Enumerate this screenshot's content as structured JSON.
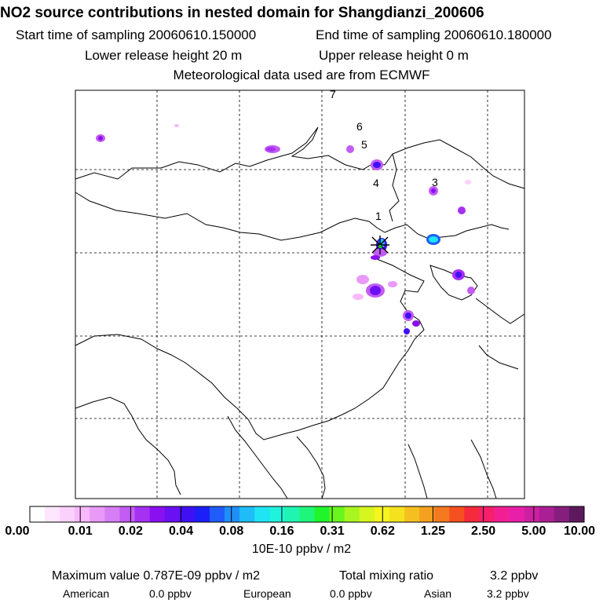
{
  "header": {
    "title": "NO2 source contributions in nested domain for Shangdianzi_200606",
    "start_label": "Start time of sampling 20060610.150000",
    "end_label": "End time of sampling 20060610.180000",
    "lower_label": "Lower release height   20 m",
    "upper_label": "Upper release height    0 m",
    "met_label": "Meteorological data used are from ECMWF"
  },
  "map": {
    "trajectory_labels": [
      "1",
      "3",
      "4",
      "5",
      "6",
      "7"
    ],
    "station_marker": "star-cross-icon"
  },
  "colorbar": {
    "colors": [
      "#ffffff",
      "#fde6fe",
      "#fbd0fd",
      "#f8b8fb",
      "#e99af8",
      "#d77ef5",
      "#c25cf3",
      "#a531f2",
      "#8a10f0",
      "#6a10f2",
      "#4010f5",
      "#1c1ff7",
      "#1f5cf8",
      "#1f8ff8",
      "#1fbcf8",
      "#1fe4f4",
      "#1ff3dc",
      "#1ff5b0",
      "#1ff57a",
      "#1ff52a",
      "#6af51f",
      "#a8f51f",
      "#d7f51f",
      "#f5f51f",
      "#f5e21f",
      "#f5c01f",
      "#f5a01f",
      "#f57a1f",
      "#f5501f",
      "#f52a3c",
      "#f51f6a",
      "#f21f94",
      "#e81fa8",
      "#cc1fa2",
      "#aa1f94",
      "#861e7e",
      "#5c1a5c"
    ],
    "tick_labels": [
      "0.00",
      "0.01",
      "0.02",
      "0.04",
      "0.08",
      "0.16",
      "0.31",
      "0.62",
      "1.25",
      "2.50",
      "5.00",
      "10.00"
    ],
    "unit": "10E-10 ppbv / m2"
  },
  "footer": {
    "max_value": "Maximum value  0.787E-09 ppbv / m2",
    "total_label": "Total mixing ratio",
    "total_value": "3.2 ppbv",
    "american_label": "American",
    "american_value": "0.0 ppbv",
    "european_label": "European",
    "european_value": "0.0 ppbv",
    "asian_label": "Asian",
    "asian_value": "3.2 ppbv"
  }
}
